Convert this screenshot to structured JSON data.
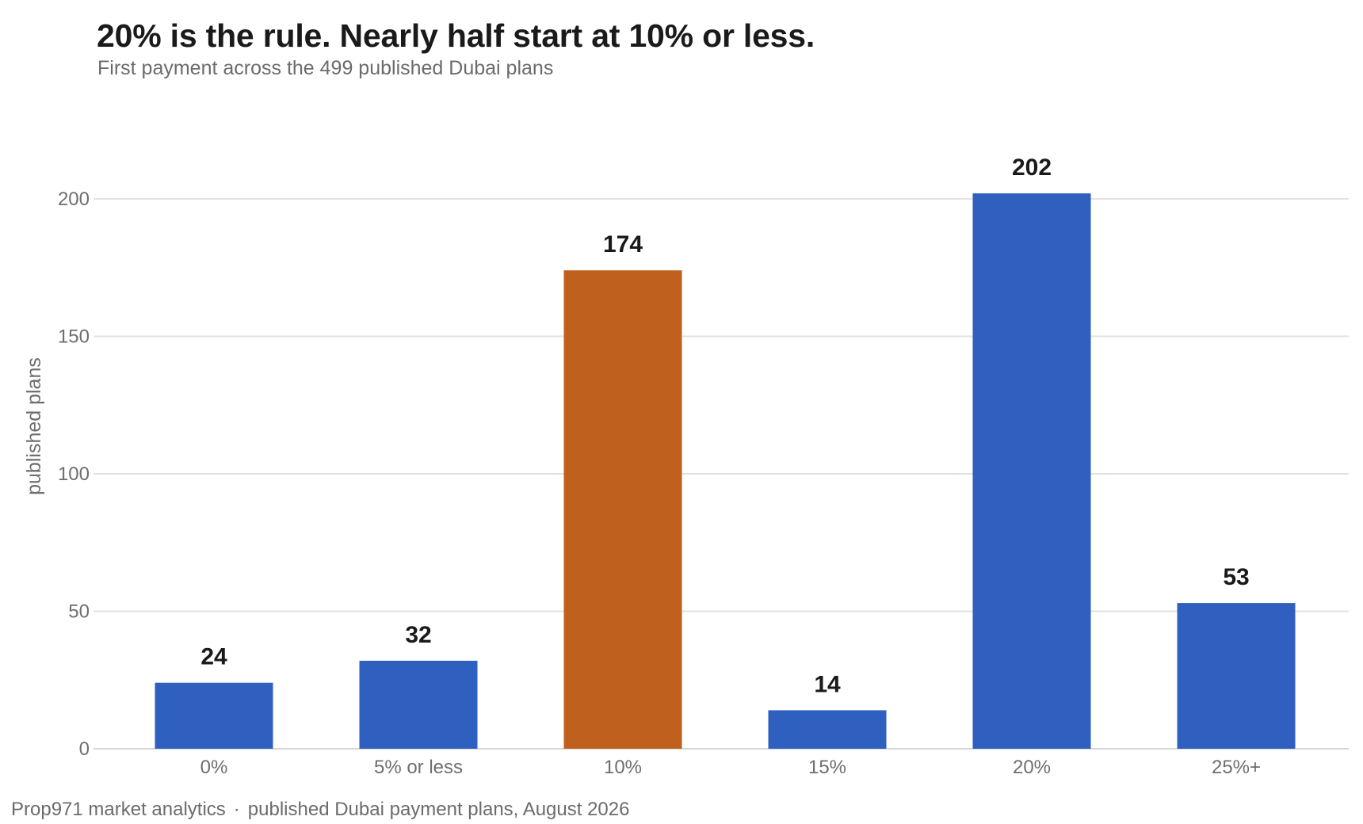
{
  "header": {
    "title": "20% is the rule. Nearly half start at 10% or less.",
    "subtitle": "First payment across the 499 published Dubai plans"
  },
  "footer": {
    "source": "Prop971 market analytics",
    "separator": "·",
    "note": "published Dubai payment plans, August 2026"
  },
  "colors": {
    "default_bar": "#2f5fbf",
    "highlight_bar": "#c0601f"
  },
  "chart_data": {
    "type": "bar",
    "title": "20% is the rule. Nearly half start at 10% or less.",
    "subtitle": "First payment across the 499 published Dubai plans",
    "xlabel": "",
    "ylabel": "published plans",
    "categories": [
      "0%",
      "5% or less",
      "10%",
      "15%",
      "20%",
      "25%+"
    ],
    "values": [
      24,
      32,
      174,
      14,
      202,
      53
    ],
    "highlight": [
      false,
      false,
      true,
      false,
      false,
      false
    ],
    "ylim": [
      0,
      200
    ],
    "yticks": [
      0,
      50,
      100,
      150,
      200
    ],
    "grid": true,
    "legend": "none",
    "data_labels": true
  }
}
